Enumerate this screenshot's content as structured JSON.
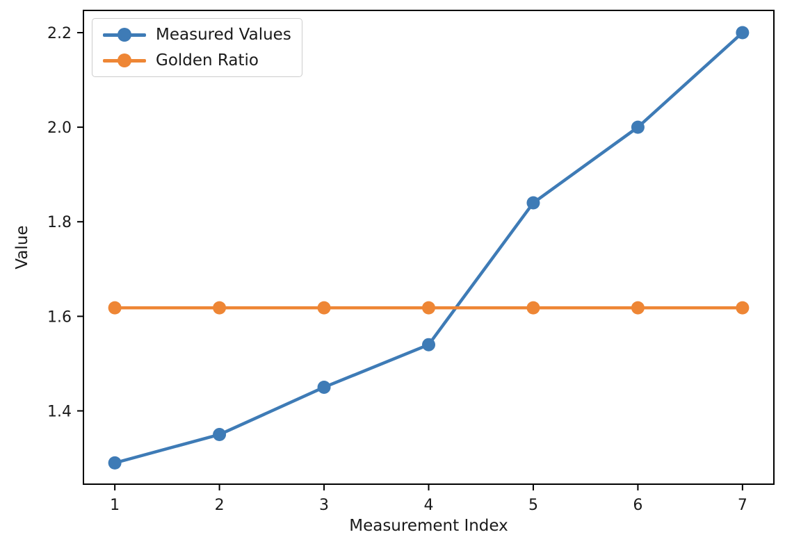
{
  "figure": {
    "background": "#ffffff"
  },
  "chart_data": {
    "type": "line",
    "title": "",
    "xlabel": "Measurement Index",
    "ylabel": "Value",
    "x": [
      1,
      2,
      3,
      4,
      5,
      6,
      7
    ],
    "series": [
      {
        "name": "Measured Values",
        "color": "#3e7bb6",
        "marker": "circle",
        "values": [
          1.29,
          1.35,
          1.45,
          1.54,
          1.84,
          2.0,
          2.2
        ]
      },
      {
        "name": "Golden Ratio",
        "color": "#ee8635",
        "marker": "circle",
        "values": [
          1.618,
          1.618,
          1.618,
          1.618,
          1.618,
          1.618,
          1.618
        ]
      }
    ],
    "xlim": [
      0.7,
      7.3
    ],
    "ylim": [
      1.245,
      2.247
    ],
    "xtick_labels": [
      "1",
      "2",
      "3",
      "4",
      "5",
      "6",
      "7"
    ],
    "ytick_labels": [
      "1.4",
      "1.6",
      "1.8",
      "2.0",
      "2.2"
    ],
    "grid": false,
    "legend_position": "upper left",
    "axis_color": "#000000",
    "tick_label_color": "#1a1a1a"
  }
}
